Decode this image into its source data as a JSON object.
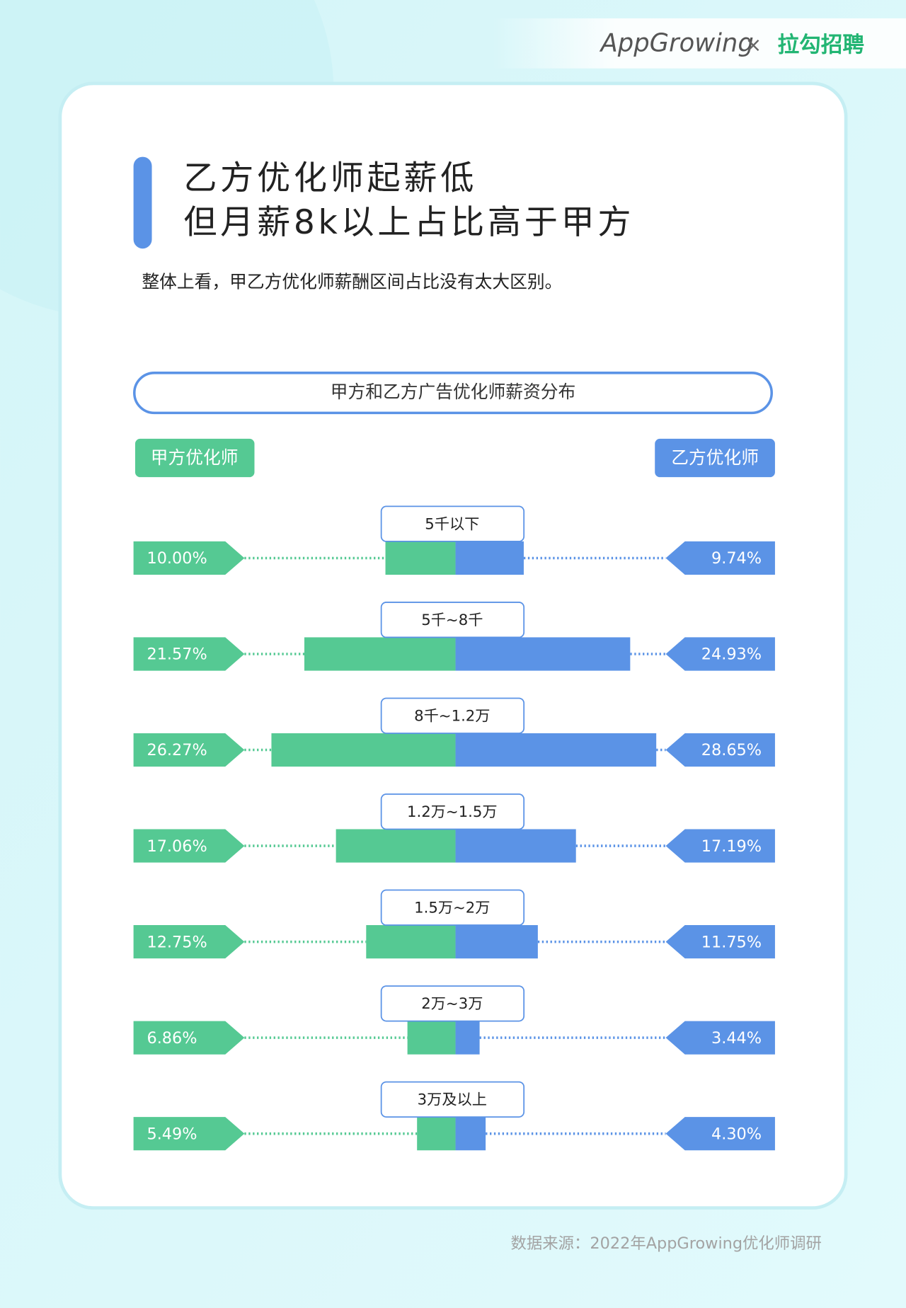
{
  "header": {
    "brand": "AppGrowing",
    "separator": "×",
    "partner": "拉勾招聘"
  },
  "chart_data": {
    "type": "butterfly",
    "title": [
      "乙方优化师起薪低",
      "但月薪8k以上占比高于甲方"
    ],
    "subtitle": "整体上看，甲乙方优化师薪酬区间占比没有太大区别。",
    "chart_title": "甲方和乙方广告优化师薪资分布",
    "categories": [
      "5千以下",
      "5千~8千",
      "8千~1.2万",
      "1.2万~1.5万",
      "1.5万~2万",
      "2万~3万",
      "3万及以上"
    ],
    "series": [
      {
        "name": "甲方优化师",
        "color": "#55c993",
        "values": [
          10,
          21.57,
          26.27,
          17.06,
          12.75,
          6.86,
          5.49
        ],
        "value_labels": [
          "10.00%",
          "21.57%",
          "26.27%",
          "17.06%",
          "12.75%",
          "6.86%",
          "5.49%"
        ]
      },
      {
        "name": "乙方优化师",
        "color": "#5b93e6",
        "values": [
          9.74,
          24.93,
          28.65,
          17.19,
          11.75,
          3.44,
          4.3
        ],
        "value_labels": [
          "9.74%",
          "24.93%",
          "28.65%",
          "17.19%",
          "11.75%",
          "3.44%",
          "4.30%"
        ]
      }
    ]
  },
  "footer": {
    "source": "数据来源：2022年AppGrowing优化师调研"
  }
}
